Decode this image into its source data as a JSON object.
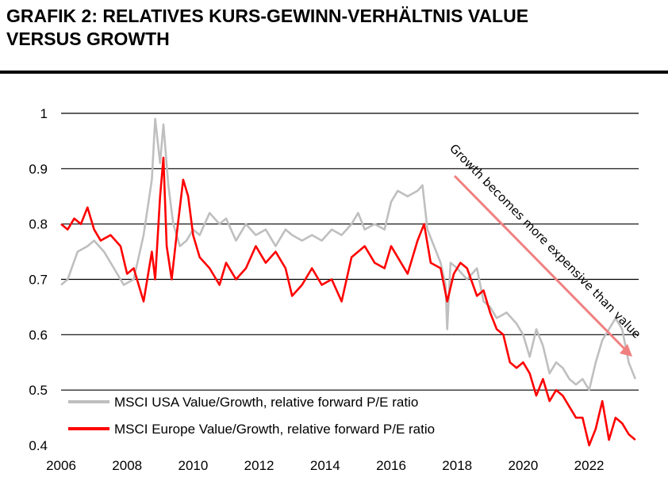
{
  "title_line1": "GRAFIK 2: RELATIVES KURS-GEWINN-VERHÄLTNIS VALUE",
  "title_line2": "VERSUS GROWTH",
  "colors": {
    "usa": "#bfbfbf",
    "europe": "#ff0000",
    "arrow": "#f08080",
    "grid": "#000000"
  },
  "chart_data": {
    "type": "line",
    "title": "GRAFIK 2: RELATIVES KURS-GEWINN-VERHÄLTNIS VALUE VERSUS GROWTH",
    "xlabel": "",
    "ylabel": "",
    "xlim": [
      2006,
      2023.5
    ],
    "ylim": [
      0.4,
      1.0
    ],
    "xticks": [
      "2006",
      "2008",
      "2010",
      "2012",
      "2014",
      "2016",
      "2018",
      "2020",
      "2022"
    ],
    "yticks": [
      "1",
      "0.9",
      "0.8",
      "0.7",
      "0.6",
      "0.5",
      "0.4"
    ],
    "legend_position": "bottom-left",
    "annotation": "Growth becomes more expensive than value",
    "series": [
      {
        "name": "MSCI USA Value/Growth, relative forward P/E ratio",
        "color_key": "usa",
        "x": [
          2006.0,
          2006.2,
          2006.5,
          2006.8,
          2007.0,
          2007.3,
          2007.6,
          2007.9,
          2008.2,
          2008.5,
          2008.75,
          2008.85,
          2009.0,
          2009.1,
          2009.25,
          2009.4,
          2009.6,
          2009.8,
          2010.0,
          2010.2,
          2010.5,
          2010.8,
          2011.0,
          2011.3,
          2011.6,
          2011.9,
          2012.2,
          2012.5,
          2012.8,
          2013.0,
          2013.3,
          2013.6,
          2013.9,
          2014.2,
          2014.5,
          2014.8,
          2015.0,
          2015.2,
          2015.5,
          2015.8,
          2016.0,
          2016.2,
          2016.5,
          2016.8,
          2016.95,
          2017.1,
          2017.3,
          2017.5,
          2017.65,
          2017.7,
          2017.8,
          2018.0,
          2018.3,
          2018.6,
          2018.8,
          2019.0,
          2019.2,
          2019.5,
          2019.8,
          2020.0,
          2020.2,
          2020.4,
          2020.6,
          2020.8,
          2021.0,
          2021.2,
          2021.4,
          2021.6,
          2021.8,
          2022.0,
          2022.2,
          2022.4,
          2022.6,
          2022.8,
          2023.0,
          2023.2,
          2023.4
        ],
        "values": [
          0.69,
          0.7,
          0.75,
          0.76,
          0.77,
          0.75,
          0.72,
          0.69,
          0.7,
          0.78,
          0.88,
          0.99,
          0.91,
          0.98,
          0.87,
          0.8,
          0.76,
          0.77,
          0.79,
          0.78,
          0.82,
          0.8,
          0.81,
          0.77,
          0.8,
          0.78,
          0.79,
          0.76,
          0.79,
          0.78,
          0.77,
          0.78,
          0.77,
          0.79,
          0.78,
          0.8,
          0.82,
          0.79,
          0.8,
          0.79,
          0.84,
          0.86,
          0.85,
          0.86,
          0.87,
          0.79,
          0.76,
          0.73,
          0.69,
          0.61,
          0.73,
          0.72,
          0.7,
          0.72,
          0.66,
          0.65,
          0.63,
          0.64,
          0.62,
          0.6,
          0.56,
          0.61,
          0.58,
          0.53,
          0.55,
          0.54,
          0.52,
          0.51,
          0.52,
          0.5,
          0.55,
          0.59,
          0.61,
          0.63,
          0.61,
          0.55,
          0.52
        ]
      },
      {
        "name": "MSCI Europe Value/Growth, relative forward P/E ratio",
        "color_key": "europe",
        "x": [
          2006.0,
          2006.2,
          2006.4,
          2006.6,
          2006.8,
          2007.0,
          2007.2,
          2007.5,
          2007.8,
          2008.0,
          2008.2,
          2008.5,
          2008.75,
          2008.85,
          2009.0,
          2009.1,
          2009.2,
          2009.35,
          2009.5,
          2009.7,
          2009.85,
          2010.0,
          2010.2,
          2010.5,
          2010.8,
          2011.0,
          2011.3,
          2011.6,
          2011.9,
          2012.2,
          2012.5,
          2012.8,
          2013.0,
          2013.3,
          2013.6,
          2013.9,
          2014.2,
          2014.5,
          2014.8,
          2015.0,
          2015.2,
          2015.5,
          2015.8,
          2016.0,
          2016.2,
          2016.5,
          2016.8,
          2017.0,
          2017.2,
          2017.5,
          2017.7,
          2017.9,
          2018.1,
          2018.3,
          2018.6,
          2018.8,
          2019.0,
          2019.2,
          2019.4,
          2019.6,
          2019.8,
          2020.0,
          2020.2,
          2020.4,
          2020.6,
          2020.8,
          2021.0,
          2021.2,
          2021.4,
          2021.6,
          2021.8,
          2022.0,
          2022.2,
          2022.4,
          2022.6,
          2022.8,
          2023.0,
          2023.2,
          2023.4
        ],
        "values": [
          0.8,
          0.79,
          0.81,
          0.8,
          0.83,
          0.79,
          0.77,
          0.78,
          0.76,
          0.71,
          0.72,
          0.66,
          0.75,
          0.7,
          0.85,
          0.92,
          0.76,
          0.7,
          0.78,
          0.88,
          0.85,
          0.78,
          0.74,
          0.72,
          0.69,
          0.73,
          0.7,
          0.72,
          0.76,
          0.73,
          0.75,
          0.72,
          0.67,
          0.69,
          0.72,
          0.69,
          0.7,
          0.66,
          0.74,
          0.75,
          0.76,
          0.73,
          0.72,
          0.76,
          0.74,
          0.71,
          0.77,
          0.8,
          0.73,
          0.72,
          0.66,
          0.71,
          0.73,
          0.72,
          0.67,
          0.68,
          0.64,
          0.61,
          0.6,
          0.55,
          0.54,
          0.55,
          0.53,
          0.49,
          0.52,
          0.48,
          0.5,
          0.49,
          0.47,
          0.45,
          0.45,
          0.4,
          0.43,
          0.48,
          0.41,
          0.45,
          0.44,
          0.42,
          0.41
        ]
      }
    ]
  }
}
